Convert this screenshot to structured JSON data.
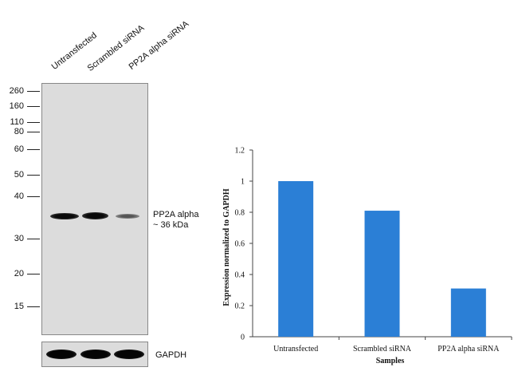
{
  "western_blot": {
    "lanes": [
      "Untransfected",
      "Scrambled siRNA",
      "PP2A alpha siRNA"
    ],
    "mw_markers": [
      "260",
      "160",
      "110",
      "80",
      "60",
      "50",
      "40",
      "30",
      "20",
      "15"
    ],
    "band_label_line1": "PP2A alpha",
    "band_label_line2": "~ 36 kDa",
    "loading_control_label": "GAPDH"
  },
  "chart_data": {
    "type": "bar",
    "categories": [
      "Untransfected",
      "Scrambled siRNA",
      "PP2A alpha siRNA"
    ],
    "values": [
      1.0,
      0.81,
      0.31
    ],
    "xlabel": "Samples",
    "ylabel": "Expression normalized to GAPDH",
    "ylim": [
      0,
      1.2
    ],
    "yticks": [
      "0",
      "0.2",
      "0.4",
      "0.6",
      "0.8",
      "1",
      "1.2"
    ],
    "bar_color": "#2b7fd6",
    "grid": false
  }
}
